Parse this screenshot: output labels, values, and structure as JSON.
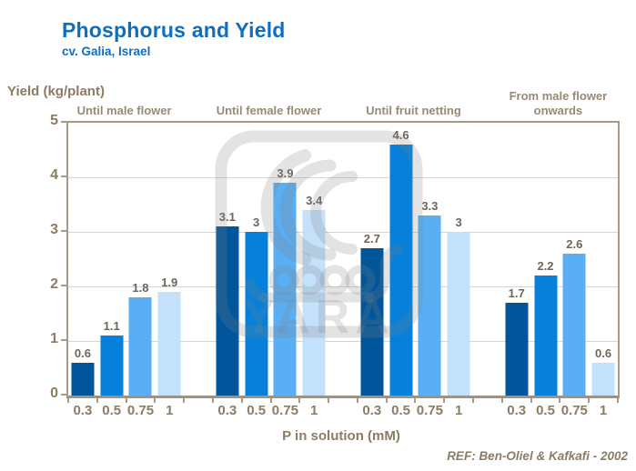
{
  "header": {
    "title": "Phosphorus and Yield",
    "subtitle": "cv. Galia, Israel",
    "title_color": "#0d6fc0"
  },
  "ref_note": "REF: Ben-Oliel & Kafkafi - 2002",
  "watermark": {
    "logo": "yara-viking-ship-logo",
    "text": "YARA"
  },
  "chart_data": {
    "type": "bar",
    "title": "Phosphorus and Yield",
    "subtitle": "cv. Galia, Israel",
    "ylabel": "Yield (kg/plant)",
    "xlabel": "P in solution (mM)",
    "ylim": [
      0,
      5
    ],
    "yticks": [
      0,
      1,
      2,
      3,
      4,
      5
    ],
    "grid": true,
    "legend": "none",
    "categories": [
      "0.3",
      "0.5",
      "0.75",
      "1"
    ],
    "groups": [
      {
        "label": "Until male flower",
        "values": [
          0.6,
          1.1,
          1.8,
          1.9
        ]
      },
      {
        "label": "Until female flower",
        "values": [
          3.1,
          3,
          3.9,
          3.4
        ]
      },
      {
        "label": "Until fruit netting",
        "values": [
          2.7,
          4.6,
          3.3,
          3
        ]
      },
      {
        "label": "From male flower onwards",
        "values": [
          1.7,
          2.2,
          2.6,
          0.6
        ]
      }
    ],
    "bar_colors": [
      "#01569b",
      "#0680da",
      "#5aaef3",
      "#c3e1fb"
    ],
    "axis_color": "#a89a86",
    "grid_color": "#d9d3ca",
    "text_color": "#8c7b65"
  }
}
